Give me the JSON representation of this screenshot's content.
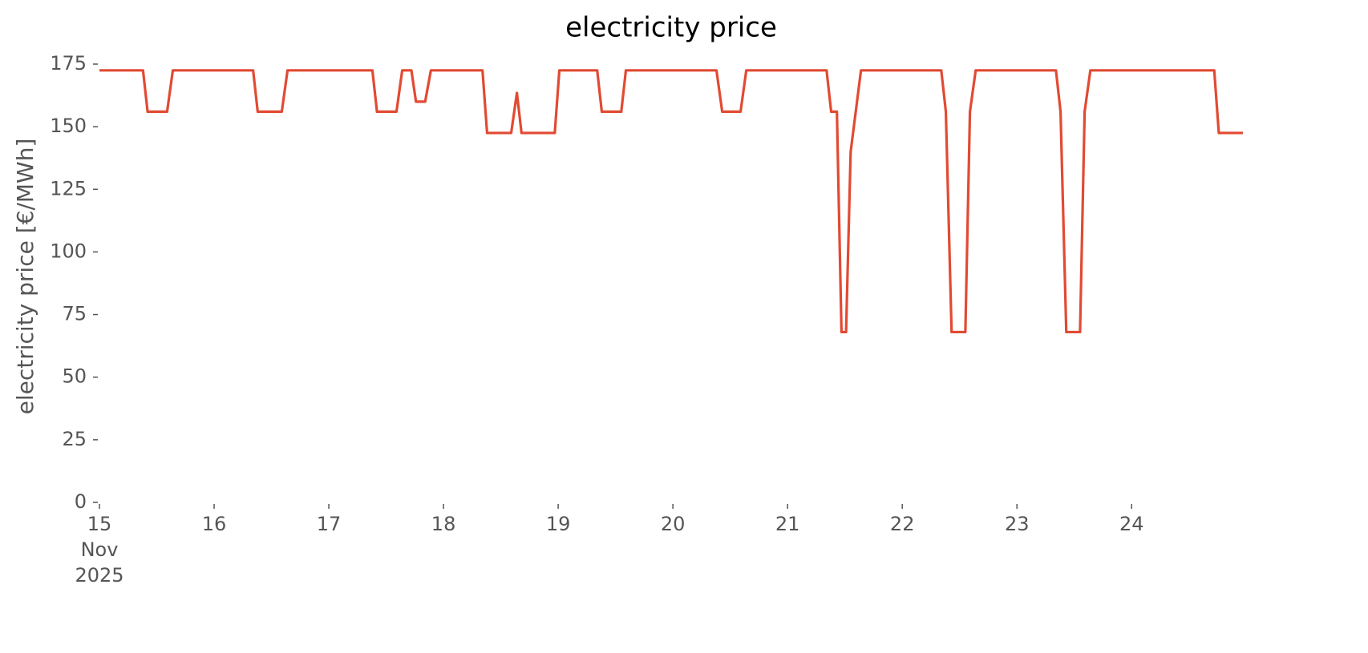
{
  "chart_data": {
    "type": "line",
    "title": "electricity price",
    "ylabel": "electricity price [€/MWh]",
    "x": [
      15.0,
      15.38,
      15.42,
      15.59,
      15.64,
      16.34,
      16.38,
      16.59,
      16.64,
      17.38,
      17.42,
      17.59,
      17.64,
      17.72,
      17.76,
      17.84,
      17.89,
      18.34,
      18.38,
      18.59,
      18.64,
      18.68,
      18.97,
      19.01,
      19.34,
      19.38,
      19.55,
      19.59,
      20.38,
      20.43,
      20.59,
      20.64,
      21.34,
      21.38,
      21.43,
      21.47,
      21.51,
      21.55,
      21.64,
      22.34,
      22.38,
      22.43,
      22.55,
      22.59,
      22.64,
      23.34,
      23.38,
      23.43,
      23.55,
      23.59,
      23.64,
      24.72,
      24.76,
      24.97
    ],
    "series": [
      {
        "color": "#e24a33",
        "values": [
          172.5,
          172.5,
          156,
          156,
          172.5,
          172.5,
          156,
          156,
          172.5,
          172.5,
          156,
          156,
          172.5,
          172.5,
          160,
          160,
          172.5,
          172.5,
          147.5,
          147.5,
          163.5,
          147.5,
          147.5,
          172.5,
          172.5,
          156,
          156,
          172.5,
          172.5,
          156,
          156,
          172.5,
          172.5,
          156,
          156,
          68,
          68,
          140,
          172.5,
          172.5,
          156,
          68,
          68,
          156,
          172.5,
          172.5,
          156,
          68,
          68,
          156,
          172.5,
          172.5,
          147.5,
          147.5
        ]
      }
    ],
    "xlim": [
      15,
      24.97
    ],
    "xticks": [
      {
        "value": 15,
        "label": "15\nNov\n2025"
      },
      16,
      17,
      18,
      19,
      20,
      21,
      22,
      23,
      24
    ],
    "ylim": [
      0,
      175
    ],
    "yticks": [
      0,
      25,
      50,
      75,
      100,
      125,
      150,
      175
    ],
    "grid": false
  }
}
